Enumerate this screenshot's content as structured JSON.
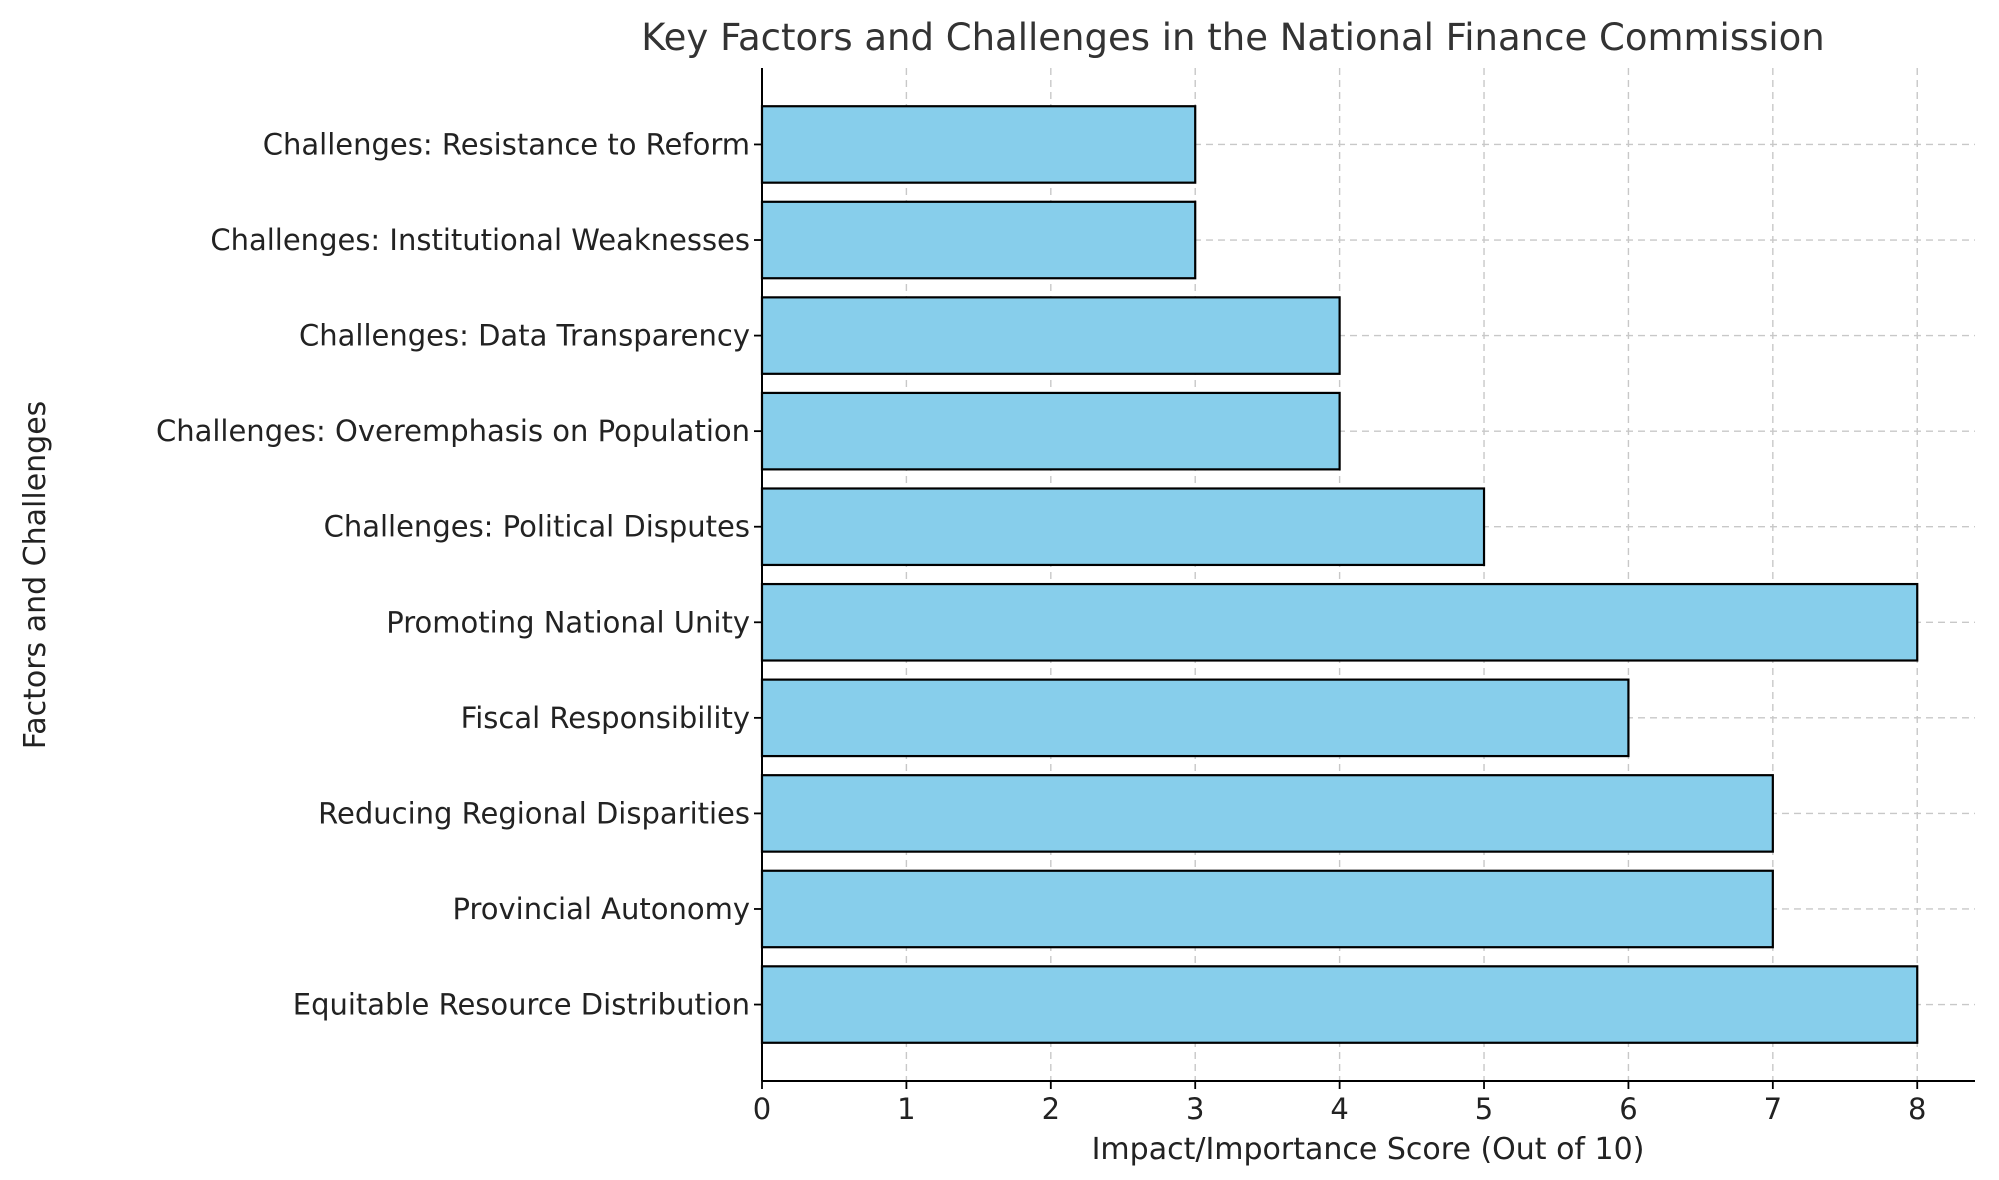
{
  "chart_data": {
    "type": "bar",
    "orientation": "horizontal",
    "title": "Key Factors and Challenges in the National Finance Commission",
    "xlabel": "Impact/Importance Score (Out of 10)",
    "ylabel": "Factors and Challenges",
    "categories": [
      "Equitable Resource Distribution",
      "Provincial Autonomy",
      "Reducing Regional Disparities",
      "Fiscal Responsibility",
      "Promoting National Unity",
      "Challenges: Political Disputes",
      "Challenges: Overemphasis on Population",
      "Challenges: Data Transparency",
      "Challenges: Institutional Weaknesses",
      "Challenges: Resistance to Reform"
    ],
    "values": [
      8,
      7,
      7,
      6,
      8,
      5,
      4,
      4,
      3,
      3
    ],
    "xlim": [
      0,
      8.4
    ],
    "xticks": [
      0,
      1,
      2,
      3,
      4,
      5,
      6,
      7,
      8
    ],
    "grid": true,
    "bar_color": "#87CEEB",
    "edge_color": "#000000"
  }
}
